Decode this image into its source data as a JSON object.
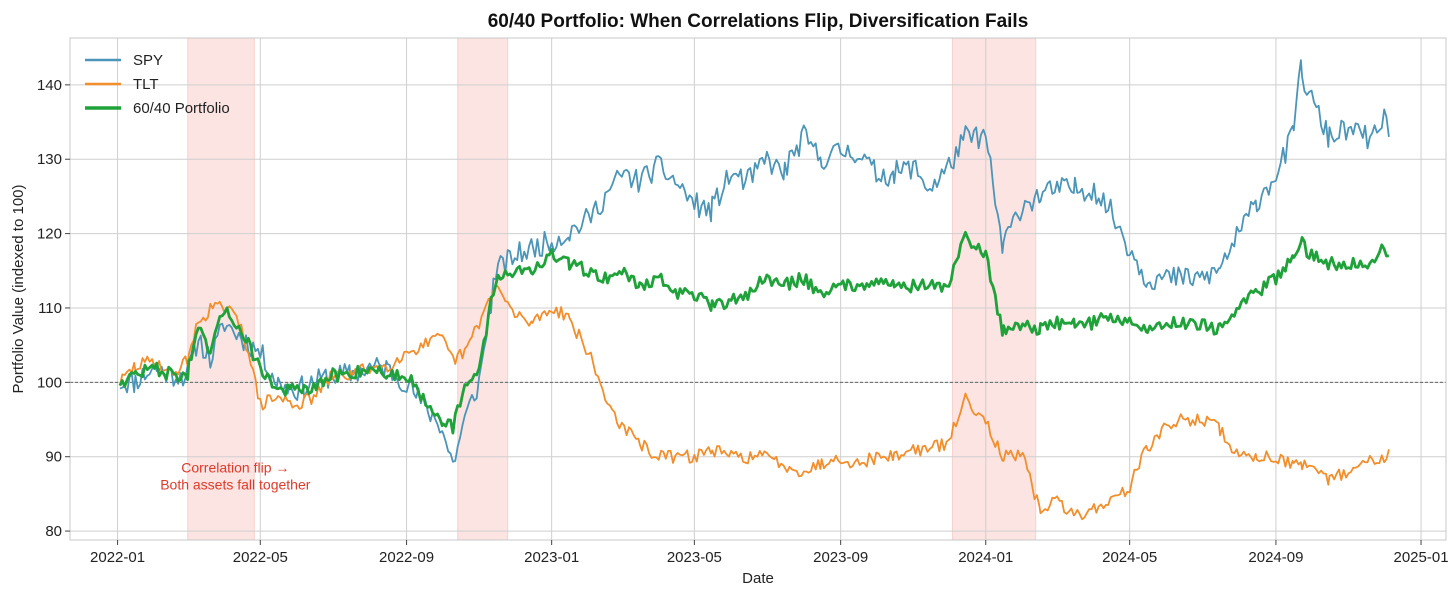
{
  "chart_data": {
    "type": "line",
    "title": "60/40 Portfolio: When Correlations Flip, Diversification Fails",
    "xlabel": "Date",
    "ylabel": "Portfolio Value (indexed to 100)",
    "xlim": [
      "2021-11-22",
      "2025-01-22"
    ],
    "ylim": [
      78.8,
      146.3
    ],
    "xticks": [
      "2022-01",
      "2022-05",
      "2022-09",
      "2023-01",
      "2023-05",
      "2023-09",
      "2024-01",
      "2024-05",
      "2024-09",
      "2025-01"
    ],
    "yticks": [
      80,
      90,
      100,
      110,
      120,
      130,
      140
    ],
    "grid": true,
    "legend_position": "top-left",
    "reference_line": {
      "y": 100,
      "style": "dashed"
    },
    "shaded_periods": [
      {
        "start": "2022-03-01",
        "end": "2022-04-26",
        "color": "#f4b2ac"
      },
      {
        "start": "2022-10-14",
        "end": "2022-11-25",
        "color": "#f4b2ac"
      },
      {
        "start": "2023-12-04",
        "end": "2024-02-12",
        "color": "#f4b2ac"
      }
    ],
    "annotation": {
      "lines": [
        "Correlation flip →",
        "Both assets fall together"
      ],
      "color": "#e03a2a",
      "x": "2022-04-10",
      "y": 87.1
    },
    "series": [
      {
        "name": "SPY",
        "color": "#4b95b8",
        "x": [
          "2022-01-03",
          "2022-01-15",
          "2022-02-01",
          "2022-02-15",
          "2022-03-01",
          "2022-03-10",
          "2022-03-20",
          "2022-04-01",
          "2022-04-15",
          "2022-05-01",
          "2022-05-15",
          "2022-06-01",
          "2022-06-15",
          "2022-07-01",
          "2022-07-15",
          "2022-08-01",
          "2022-08-15",
          "2022-09-01",
          "2022-09-15",
          "2022-10-01",
          "2022-10-10",
          "2022-10-20",
          "2022-11-01",
          "2022-11-15",
          "2022-12-01",
          "2022-12-15",
          "2023-01-01",
          "2023-01-15",
          "2023-02-01",
          "2023-02-15",
          "2023-03-01",
          "2023-03-15",
          "2023-04-01",
          "2023-04-15",
          "2023-05-01",
          "2023-05-15",
          "2023-06-01",
          "2023-06-15",
          "2023-07-01",
          "2023-07-15",
          "2023-08-01",
          "2023-08-15",
          "2023-09-01",
          "2023-09-15",
          "2023-10-01",
          "2023-10-15",
          "2023-11-01",
          "2023-11-15",
          "2023-12-01",
          "2023-12-15",
          "2024-01-01",
          "2024-01-15",
          "2024-02-01",
          "2024-02-15",
          "2024-03-01",
          "2024-03-15",
          "2024-04-01",
          "2024-04-15",
          "2024-05-01",
          "2024-05-15",
          "2024-06-01",
          "2024-06-15",
          "2024-07-01",
          "2024-07-15",
          "2024-08-01",
          "2024-08-15",
          "2024-09-01",
          "2024-09-15",
          "2024-09-22",
          "2024-10-01",
          "2024-10-15",
          "2024-11-01",
          "2024-11-15",
          "2024-11-25",
          "2024-12-01",
          "2024-12-05"
        ],
        "values": [
          100,
          100,
          102,
          101,
          101,
          106,
          103,
          108,
          106,
          104,
          100,
          99,
          100,
          101,
          101,
          102,
          102,
          100,
          97,
          94,
          89,
          95,
          100,
          115,
          117,
          118,
          119,
          120,
          122,
          125,
          128,
          127,
          129,
          127,
          124,
          123,
          128,
          127,
          130,
          128,
          133,
          130,
          131,
          131,
          128,
          128,
          129,
          126,
          129,
          133,
          133,
          118,
          124,
          125,
          126,
          126,
          126,
          123,
          118,
          114,
          114,
          114,
          114,
          115,
          120,
          124,
          128,
          133,
          142,
          138,
          133,
          134,
          133,
          133,
          136,
          133
        ]
      },
      {
        "name": "TLT",
        "color": "#f28e2b",
        "x": [
          "2022-01-03",
          "2022-01-15",
          "2022-02-01",
          "2022-02-15",
          "2022-03-01",
          "2022-03-10",
          "2022-03-20",
          "2022-04-01",
          "2022-04-15",
          "2022-05-01",
          "2022-05-15",
          "2022-06-01",
          "2022-06-15",
          "2022-07-01",
          "2022-07-15",
          "2022-08-01",
          "2022-08-15",
          "2022-09-01",
          "2022-09-15",
          "2022-10-01",
          "2022-10-10",
          "2022-10-20",
          "2022-11-01",
          "2022-11-15",
          "2022-12-01",
          "2022-12-15",
          "2023-01-01",
          "2023-01-15",
          "2023-02-01",
          "2023-02-15",
          "2023-03-01",
          "2023-03-15",
          "2023-04-01",
          "2023-04-15",
          "2023-05-01",
          "2023-05-15",
          "2023-06-01",
          "2023-06-15",
          "2023-07-01",
          "2023-07-15",
          "2023-08-01",
          "2023-08-15",
          "2023-09-01",
          "2023-09-15",
          "2023-10-01",
          "2023-10-15",
          "2023-11-01",
          "2023-11-15",
          "2023-12-01",
          "2023-12-15",
          "2024-01-01",
          "2024-01-15",
          "2024-02-01",
          "2024-02-15",
          "2024-03-01",
          "2024-03-15",
          "2024-04-01",
          "2024-04-15",
          "2024-05-01",
          "2024-05-15",
          "2024-06-01",
          "2024-06-15",
          "2024-07-01",
          "2024-07-15",
          "2024-08-01",
          "2024-08-15",
          "2024-09-01",
          "2024-09-15",
          "2024-09-22",
          "2024-10-01",
          "2024-10-15",
          "2024-11-01",
          "2024-11-15",
          "2024-11-25",
          "2024-12-01",
          "2024-12-05"
        ],
        "values": [
          100,
          102,
          103,
          101,
          103,
          108,
          110,
          110,
          108,
          97,
          98,
          97,
          98,
          101,
          101,
          102,
          102,
          104,
          105,
          106,
          103,
          104,
          108,
          113,
          109,
          108,
          110,
          109,
          104,
          98,
          94,
          92,
          90,
          90,
          90,
          91,
          90,
          90,
          90,
          89,
          88,
          89,
          90,
          89,
          90,
          90,
          91,
          91,
          92,
          98,
          95,
          90,
          90,
          83,
          84,
          82,
          83,
          84,
          86,
          91,
          94,
          95,
          95,
          94,
          90,
          90,
          90,
          89,
          89,
          88,
          87,
          88,
          89,
          90,
          90,
          91
        ]
      },
      {
        "name": "60/40 Portfolio",
        "color": "#1fa23a",
        "x": [
          "2022-01-03",
          "2022-01-15",
          "2022-02-01",
          "2022-02-15",
          "2022-03-01",
          "2022-03-10",
          "2022-03-20",
          "2022-04-01",
          "2022-04-15",
          "2022-05-01",
          "2022-05-15",
          "2022-06-01",
          "2022-06-15",
          "2022-07-01",
          "2022-07-15",
          "2022-08-01",
          "2022-08-15",
          "2022-09-01",
          "2022-09-15",
          "2022-10-01",
          "2022-10-10",
          "2022-10-20",
          "2022-11-01",
          "2022-11-15",
          "2022-12-01",
          "2022-12-15",
          "2023-01-01",
          "2023-01-15",
          "2023-02-01",
          "2023-02-15",
          "2023-03-01",
          "2023-03-15",
          "2023-04-01",
          "2023-04-15",
          "2023-05-01",
          "2023-05-15",
          "2023-06-01",
          "2023-06-15",
          "2023-07-01",
          "2023-07-15",
          "2023-08-01",
          "2023-08-15",
          "2023-09-01",
          "2023-09-15",
          "2023-10-01",
          "2023-10-15",
          "2023-11-01",
          "2023-11-15",
          "2023-12-01",
          "2023-12-15",
          "2024-01-01",
          "2024-01-15",
          "2024-02-01",
          "2024-02-15",
          "2024-03-01",
          "2024-03-15",
          "2024-04-01",
          "2024-04-15",
          "2024-05-01",
          "2024-05-15",
          "2024-06-01",
          "2024-06-15",
          "2024-07-01",
          "2024-07-15",
          "2024-08-01",
          "2024-08-15",
          "2024-09-01",
          "2024-09-15",
          "2024-09-22",
          "2024-10-01",
          "2024-10-15",
          "2024-11-01",
          "2024-11-15",
          "2024-11-25",
          "2024-12-01",
          "2024-12-05"
        ],
        "values": [
          100,
          101,
          102,
          101,
          101,
          107,
          104,
          110,
          107,
          102,
          99,
          99,
          99,
          101,
          101,
          102,
          101,
          101,
          98,
          95,
          94,
          99,
          102,
          114,
          115,
          115,
          117,
          116,
          115,
          114,
          115,
          113,
          114,
          112,
          112,
          110,
          111,
          112,
          114,
          113,
          114,
          112,
          113,
          113,
          114,
          113,
          113,
          113,
          113,
          120,
          117,
          107,
          108,
          107,
          108,
          108,
          108,
          109,
          108,
          107,
          108,
          108,
          108,
          107,
          110,
          112,
          114,
          117,
          119,
          117,
          116,
          116,
          116,
          117,
          118,
          117
        ]
      }
    ]
  }
}
